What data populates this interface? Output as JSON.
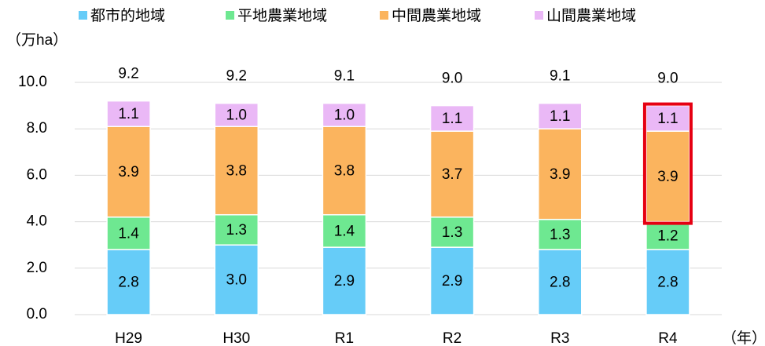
{
  "chart_data": {
    "type": "stacked_bar",
    "y_label": "（万ha）",
    "x_label": "（年）",
    "categories": [
      "H29",
      "H30",
      "R1",
      "R2",
      "R3",
      "R4"
    ],
    "series": [
      {
        "name": "都市的地域",
        "color": "#66ccf8",
        "values": [
          2.8,
          3.0,
          2.9,
          2.9,
          2.8,
          2.8
        ],
        "value_labels": [
          "2.8",
          "3.0",
          "2.9",
          "2.9",
          "2.8",
          "2.8"
        ]
      },
      {
        "name": "平地農業地域",
        "color": "#6ee891",
        "values": [
          1.4,
          1.3,
          1.4,
          1.3,
          1.3,
          1.2
        ],
        "value_labels": [
          "1.4",
          "1.3",
          "1.4",
          "1.3",
          "1.3",
          "1.2"
        ]
      },
      {
        "name": "中間農業地域",
        "color": "#fbb45e",
        "values": [
          3.9,
          3.8,
          3.8,
          3.7,
          3.9,
          3.9
        ],
        "value_labels": [
          "3.9",
          "3.8",
          "3.8",
          "3.7",
          "3.9",
          "3.9"
        ]
      },
      {
        "name": "山間農業地域",
        "color": "#eab8f6",
        "values": [
          1.1,
          1.0,
          1.0,
          1.1,
          1.1,
          1.1
        ],
        "value_labels": [
          "1.1",
          "1.0",
          "1.0",
          "1.1",
          "1.1",
          "1.1"
        ]
      }
    ],
    "totals": {
      "values": [
        9.2,
        9.2,
        9.1,
        9.0,
        9.1,
        9.0
      ],
      "value_labels": [
        "9.2",
        "9.2",
        "9.1",
        "9.0",
        "9.1",
        "9.0"
      ]
    },
    "ylim": [
      0,
      10
    ],
    "yticks": [
      {
        "value": 0,
        "label": "0.0"
      },
      {
        "value": 2,
        "label": "2.0"
      },
      {
        "value": 4,
        "label": "4.0"
      },
      {
        "value": 6,
        "label": "6.0"
      },
      {
        "value": 8,
        "label": "8.0"
      },
      {
        "value": 10,
        "label": "10.0"
      }
    ],
    "grid": true,
    "legend": "top"
  }
}
